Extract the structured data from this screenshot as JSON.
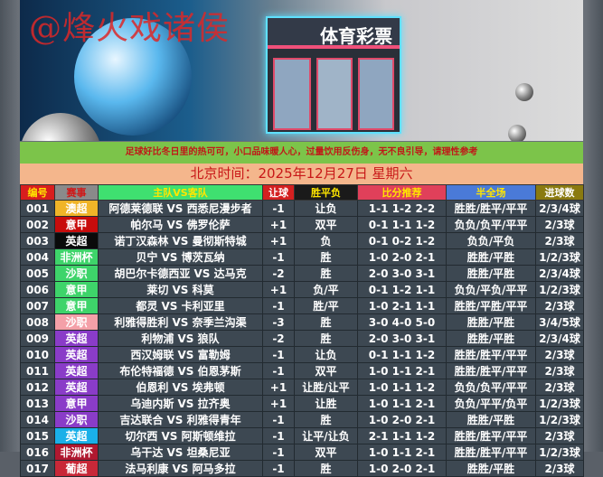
{
  "banner": {
    "watermark": "@烽火戏诸侯",
    "store_sign": "体育彩票"
  },
  "notice": "足球好比冬日里的热可可，小口品味暖人心，过量饮用反伤身，无不良引导，请理性参考",
  "date": "北京时间：2025年12月27日  星期六",
  "columns": [
    {
      "label": "编号",
      "bg": "#d81e1e",
      "color": "#ffe600"
    },
    {
      "label": "赛事",
      "bg": "#8a8a8a",
      "color": "#d01818"
    },
    {
      "label": "主队VS客队",
      "bg": "#3fe070",
      "color": "#ffe600"
    },
    {
      "label": "让球",
      "bg": "#d42020",
      "color": "#ffffff"
    },
    {
      "label": "胜平负",
      "bg": "#1a1a1a",
      "color": "#ffe600"
    },
    {
      "label": "比分推荐",
      "bg": "#e0405a",
      "color": "#ffe600"
    },
    {
      "label": "半全场",
      "bg": "#4a7ad8",
      "color": "#ffe600"
    },
    {
      "label": "进球数",
      "bg": "#8a7a10",
      "color": "#ffffff"
    }
  ],
  "rows": [
    {
      "no": "001",
      "league": "澳超",
      "league_color": "#f0b428",
      "match": "阿德莱德联 VS 西悉尼漫步者",
      "handicap": "-1",
      "result": "让负",
      "scores": "1-1 1-2 2-2",
      "half_full": "胜胜/胜平/平平",
      "goals": "2/3/4球"
    },
    {
      "no": "002",
      "league": "意甲",
      "league_color": "#c80c0c",
      "match": "帕尔马 VS 佛罗伦萨",
      "handicap": "+1",
      "result": "双平",
      "scores": "0-1 1-1 1-2",
      "half_full": "负负/负平/平平",
      "goals": "2/3球"
    },
    {
      "no": "003",
      "league": "英超",
      "league_color": "#0a0a0a",
      "match": "诺丁汉森林 VS 曼彻斯特城",
      "handicap": "+1",
      "result": "负",
      "scores": "0-1 0-2 1-2",
      "half_full": "负负/平负",
      "goals": "2/3球"
    },
    {
      "no": "004",
      "league": "非洲杯",
      "league_color": "#3ed46a",
      "match": "贝宁 VS 博茨瓦纳",
      "handicap": "-1",
      "result": "胜",
      "scores": "1-0 2-0 2-1",
      "half_full": "胜胜/平胜",
      "goals": "1/2/3球"
    },
    {
      "no": "005",
      "league": "沙职",
      "league_color": "#3ed46a",
      "match": "胡巴尔卡德西亚 VS 达马克",
      "handicap": "-2",
      "result": "胜",
      "scores": "2-0 3-0 3-1",
      "half_full": "胜胜/平胜",
      "goals": "2/3/4球"
    },
    {
      "no": "006",
      "league": "意甲",
      "league_color": "#3ed46a",
      "match": "莱切 VS 科莫",
      "handicap": "+1",
      "result": "负/平",
      "scores": "0-1 1-2 1-1",
      "half_full": "负负/平负/平平",
      "goals": "1/2/3球"
    },
    {
      "no": "007",
      "league": "意甲",
      "league_color": "#3ed46a",
      "match": "都灵 VS 卡利亚里",
      "handicap": "-1",
      "result": "胜/平",
      "scores": "1-0 2-1 1-1",
      "half_full": "胜胜/平胜/平平",
      "goals": "2/3球"
    },
    {
      "no": "008",
      "league": "沙职",
      "league_color": "#f4a0a8",
      "match": "利雅得胜利 VS 奈季兰沟渠",
      "handicap": "-3",
      "result": "胜",
      "scores": "3-0 4-0 5-0",
      "half_full": "胜胜/平胜",
      "goals": "3/4/5球"
    },
    {
      "no": "009",
      "league": "英超",
      "league_color": "#8a3cc8",
      "match": "利物浦 VS 狼队",
      "handicap": "-2",
      "result": "胜",
      "scores": "2-0 3-0 3-1",
      "half_full": "胜胜/平胜",
      "goals": "2/3/4球"
    },
    {
      "no": "010",
      "league": "英超",
      "league_color": "#8a3cc8",
      "match": "西汉姆联 VS 富勒姆",
      "handicap": "-1",
      "result": "让负",
      "scores": "0-1 1-1 1-2",
      "half_full": "胜胜/胜平/平平",
      "goals": "2/3球"
    },
    {
      "no": "011",
      "league": "英超",
      "league_color": "#8a3cc8",
      "match": "布伦特福德 VS 伯恩茅斯",
      "handicap": "-1",
      "result": "双平",
      "scores": "1-0 1-1 2-1",
      "half_full": "胜胜/胜平/平平",
      "goals": "2/3球"
    },
    {
      "no": "012",
      "league": "英超",
      "league_color": "#8a3cc8",
      "match": "伯恩利 VS 埃弗顿",
      "handicap": "+1",
      "result": "让胜/让平",
      "scores": "1-0 1-1 1-2",
      "half_full": "负负/负平/平平",
      "goals": "2/3球"
    },
    {
      "no": "013",
      "league": "意甲",
      "league_color": "#8a3cc8",
      "match": "乌迪内斯 VS 拉齐奥",
      "handicap": "+1",
      "result": "让胜",
      "scores": "1-0 1-1 2-1",
      "half_full": "负负/平平/负平",
      "goals": "1/2/3球"
    },
    {
      "no": "014",
      "league": "沙职",
      "league_color": "#8a3cc8",
      "match": "吉达联合 VS 利雅得青年",
      "handicap": "-1",
      "result": "胜",
      "scores": "1-0 2-0 2-1",
      "half_full": "胜胜/平胜",
      "goals": "1/2/3球"
    },
    {
      "no": "015",
      "league": "英超",
      "league_color": "#1ab0e8",
      "match": "切尔西 VS 阿斯顿维拉",
      "handicap": "-1",
      "result": "让平/让负",
      "scores": "2-1 1-1 1-2",
      "half_full": "胜胜/胜平/平平",
      "goals": "2/3球"
    },
    {
      "no": "016",
      "league": "非洲杯",
      "league_color": "#b01830",
      "match": "乌干达 VS 坦桑尼亚",
      "handicap": "-1",
      "result": "双平",
      "scores": "1-0 1-1 2-1",
      "half_full": "胜胜/胜平/平平",
      "goals": "1/2/3球"
    },
    {
      "no": "017",
      "league": "葡超",
      "league_color": "#c82838",
      "match": "法马利康 VS 阿马多拉",
      "handicap": "-1",
      "result": "胜",
      "scores": "1-0 2-0 2-1",
      "half_full": "胜胜/平胜",
      "goals": "2/3球"
    }
  ]
}
